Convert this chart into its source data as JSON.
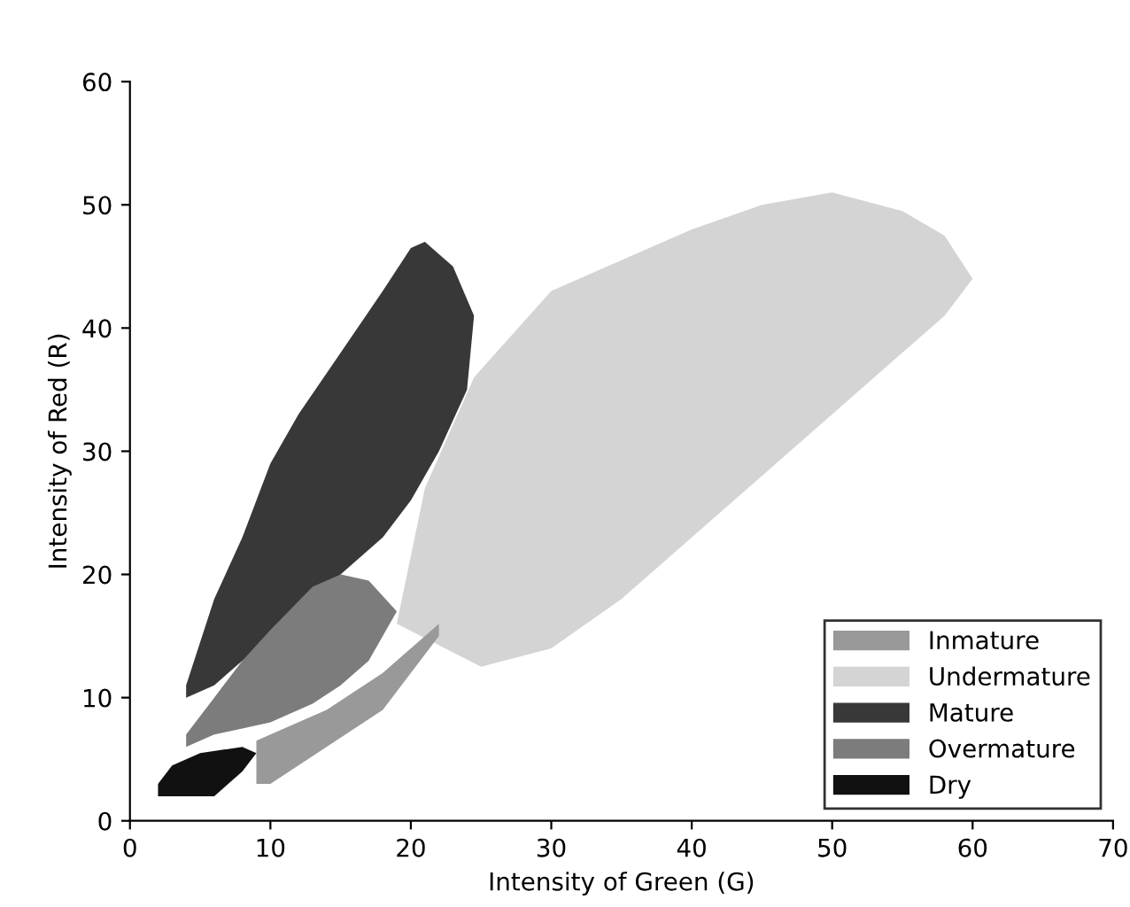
{
  "chart_data": {
    "type": "area",
    "xlabel": "Intensity of Green (G)",
    "ylabel": "Intensity of Red (R)",
    "xlim": [
      0,
      70
    ],
    "ylim": [
      0,
      60
    ],
    "xticks": [
      0,
      10,
      20,
      30,
      40,
      50,
      60,
      70
    ],
    "yticks": [
      0,
      10,
      20,
      30,
      40,
      50,
      60
    ],
    "grid": false,
    "legend": "bottom right",
    "series": [
      {
        "name": "Inmature",
        "color": "#999999",
        "x": [
          9,
          10,
          14,
          18,
          22,
          22,
          18,
          14,
          10,
          9
        ],
        "values": [
          6.5,
          7,
          9,
          12,
          16,
          15,
          9,
          6,
          3,
          3
        ]
      },
      {
        "name": "Undermature",
        "color": "#d4d4d4",
        "x": [
          24.5,
          30,
          35,
          40,
          45,
          50,
          55,
          58,
          60,
          58,
          55,
          50,
          45,
          40,
          35,
          30,
          25,
          20,
          19,
          21
        ],
        "values": [
          36,
          43,
          45.5,
          48,
          50,
          51,
          49.5,
          47.5,
          44,
          41,
          38,
          33,
          28,
          23,
          18,
          14,
          12.5,
          null,
          16,
          27
        ]
      },
      {
        "name": "Mature",
        "color": "#383838",
        "x": [
          4,
          6,
          8,
          10,
          12,
          15,
          18,
          20,
          21,
          23,
          24.5,
          24,
          22,
          20,
          18,
          15,
          12,
          10,
          8,
          6,
          4
        ],
        "values": [
          11,
          18,
          23,
          29,
          33,
          38,
          43,
          46.5,
          47,
          45,
          41,
          35,
          30,
          26,
          23,
          20,
          null,
          null,
          13,
          11,
          10
        ]
      },
      {
        "name": "Overmature",
        "color": "#7c7c7c",
        "x": [
          4,
          6,
          8,
          10,
          13,
          15,
          17,
          19,
          17,
          15,
          13,
          10,
          8,
          6,
          4
        ],
        "values": [
          7,
          10,
          13,
          15.5,
          19,
          20,
          19.5,
          17,
          13,
          11,
          9.5,
          8,
          7.5,
          7,
          6
        ]
      },
      {
        "name": "Dry",
        "color": "#111111",
        "x": [
          2,
          3,
          5,
          8,
          9,
          8,
          6,
          4,
          2
        ],
        "values": [
          3,
          4.5,
          5.5,
          6,
          5.5,
          4,
          2,
          2,
          2
        ]
      }
    ]
  }
}
